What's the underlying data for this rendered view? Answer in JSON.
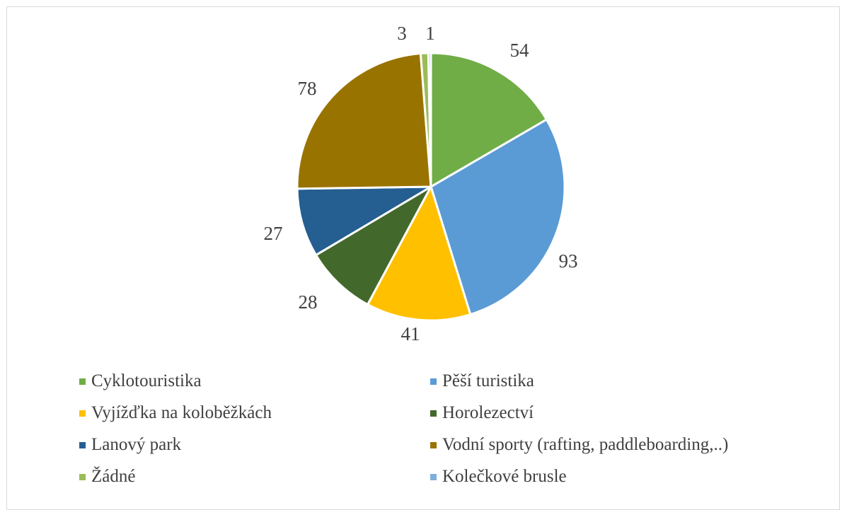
{
  "chart_data": {
    "type": "pie",
    "slices": [
      {
        "label": "Cyklotouristika",
        "value": 54,
        "color": "#70AD47"
      },
      {
        "label": "Pěší turistika",
        "value": 93,
        "color": "#5B9BD5"
      },
      {
        "label": "Vyjížďka na koloběžkách",
        "value": 41,
        "color": "#FFC000"
      },
      {
        "label": "Horolezectví",
        "value": 28,
        "color": "#43682B"
      },
      {
        "label": "Lanový park",
        "value": 27,
        "color": "#255E91"
      },
      {
        "label": "Vodní sporty (rafting, paddleboarding,..)",
        "value": 78,
        "color": "#997300"
      },
      {
        "label": "Žádné",
        "value": 3,
        "color": "#9BBB59"
      },
      {
        "label": "Kolečkové brusle",
        "value": 1,
        "color": "#7CAFDD"
      }
    ],
    "legend_position": "bottom"
  }
}
